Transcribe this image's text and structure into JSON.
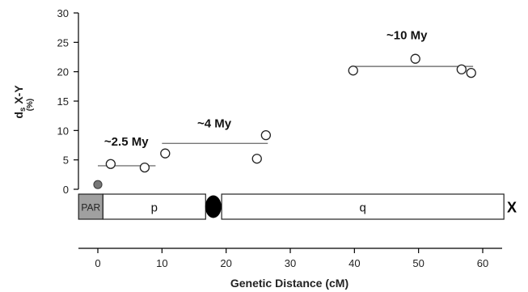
{
  "chart_data": {
    "type": "scatter",
    "xlabel": "Genetic Distance (cM)",
    "ylabel_main": "d",
    "ylabel_sub": "s",
    "ylabel_rest": " X-Y",
    "ylabel_unit": "(%)",
    "xlim": [
      -3,
      63
    ],
    "ylim": [
      0,
      30
    ],
    "x_ticks": [
      0,
      10,
      20,
      30,
      40,
      50,
      60
    ],
    "y_ticks": [
      0,
      5,
      10,
      15,
      20,
      25,
      30
    ],
    "par_point": {
      "x": 0,
      "y": 0.8
    },
    "points": [
      {
        "x": 2,
        "y": 4.3
      },
      {
        "x": 7.3,
        "y": 3.7
      },
      {
        "x": 10.5,
        "y": 6.1
      },
      {
        "x": 24.8,
        "y": 5.2
      },
      {
        "x": 26.2,
        "y": 9.2
      },
      {
        "x": 39.8,
        "y": 20.2
      },
      {
        "x": 49.5,
        "y": 22.2
      },
      {
        "x": 56.7,
        "y": 20.4
      },
      {
        "x": 58.2,
        "y": 19.8
      }
    ],
    "strata_means": [
      {
        "x_start": 0,
        "x_end": 9,
        "y": 4.0
      },
      {
        "x_start": 10,
        "x_end": 26.5,
        "y": 7.8
      },
      {
        "x_start": 39.5,
        "x_end": 58.5,
        "y": 20.9
      }
    ],
    "annotations": [
      {
        "text": "~2.5 My",
        "x": 1,
        "y": 7.4
      },
      {
        "text": "~4 My",
        "x": 15.5,
        "y": 10.5
      },
      {
        "text": "~10 My",
        "x": 45,
        "y": 25.5
      }
    ],
    "chromosome": {
      "label": "X",
      "segments": [
        {
          "label": "PAR",
          "x_start": -3,
          "x_end": 0.8,
          "fill": "#a0a0a0"
        },
        {
          "label": "p",
          "x_start": 0.8,
          "x_end": 16.8,
          "fill": "#ffffff"
        },
        {
          "label": "",
          "x_start": 19.3,
          "x_end": 63.3,
          "fill": "#ffffff"
        }
      ],
      "arm_labels": [
        "p",
        "q"
      ],
      "centromere_x": 18
    }
  }
}
